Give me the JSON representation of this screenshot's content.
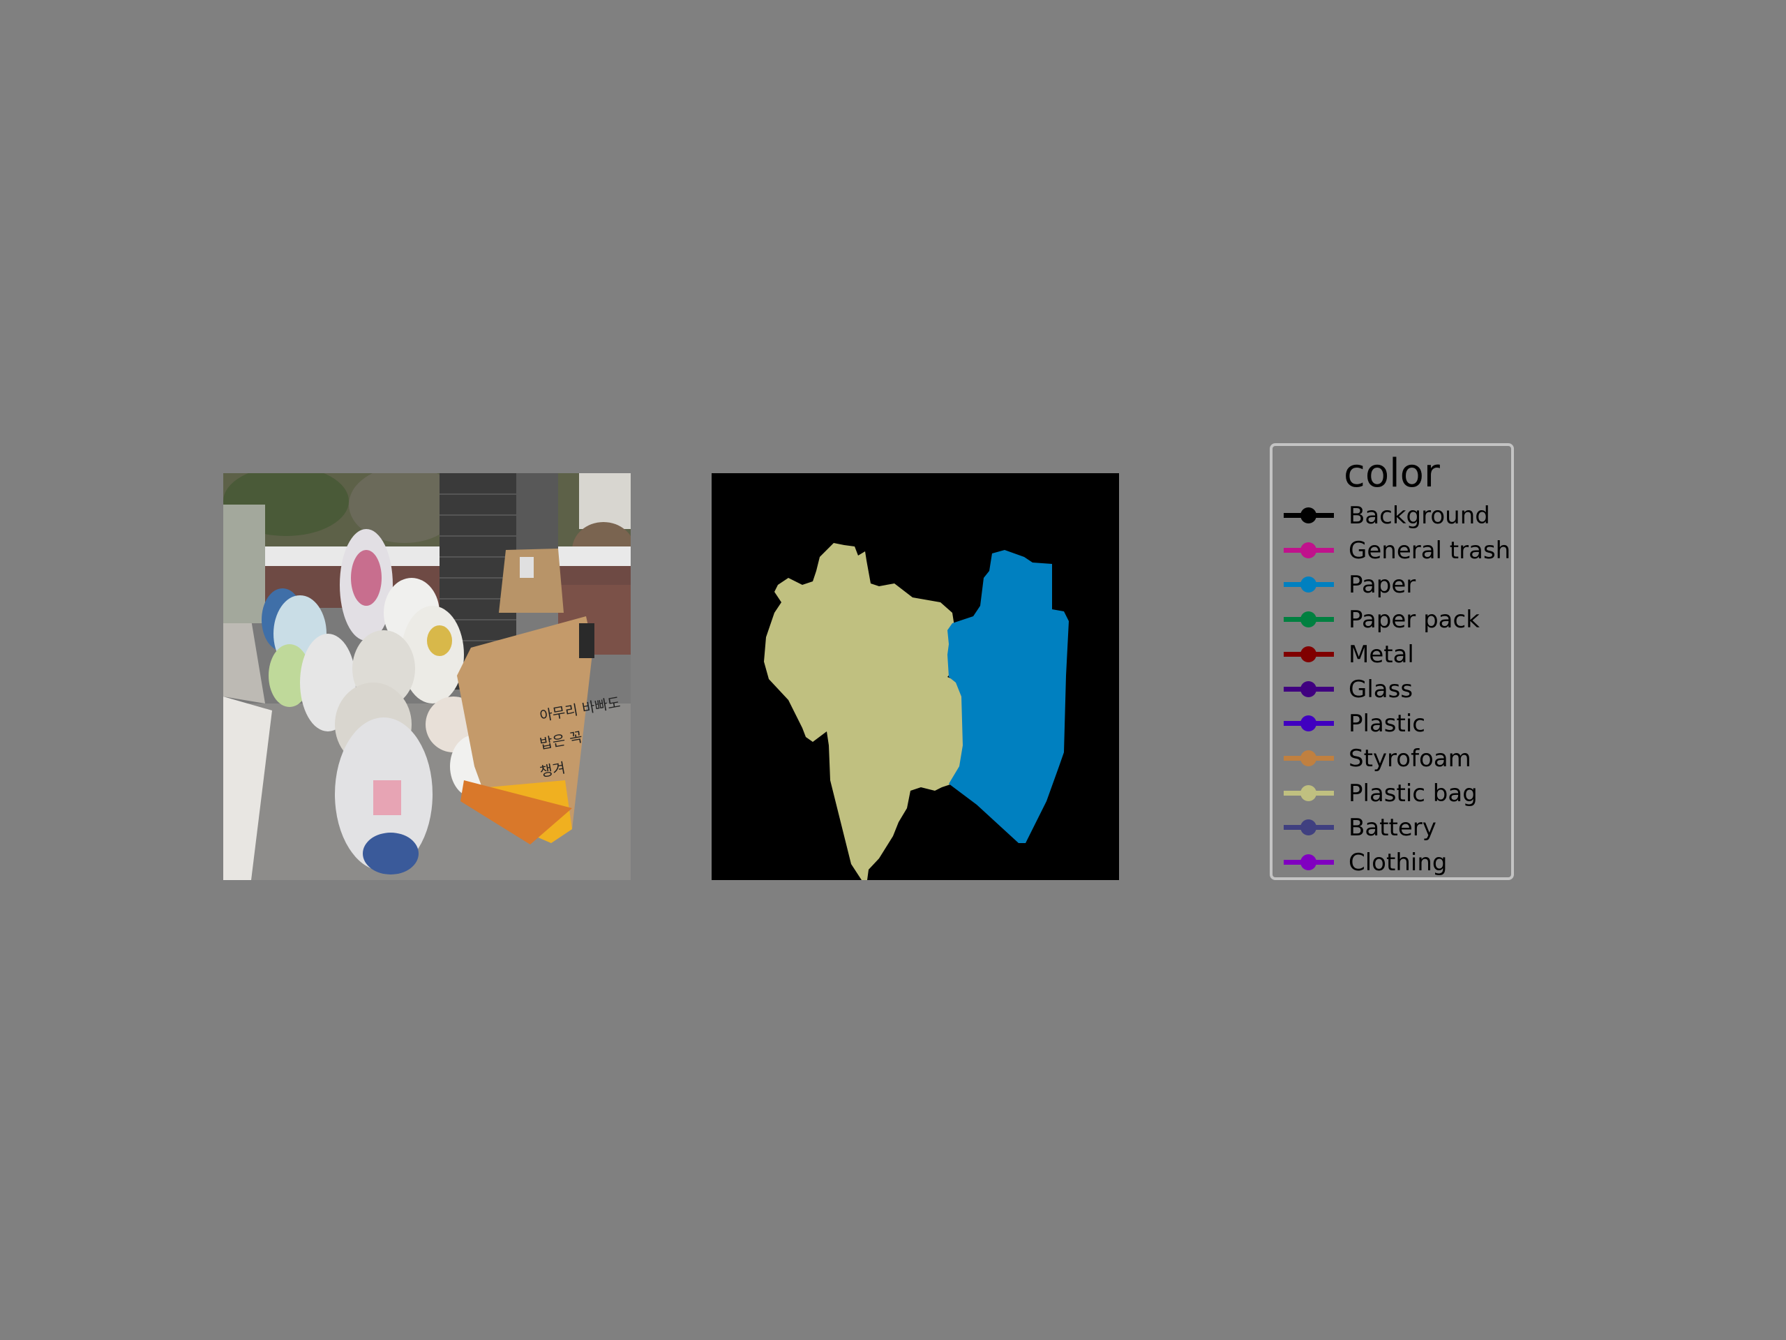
{
  "legend": {
    "title": "color",
    "items": [
      {
        "label": "Background",
        "color": "#000000"
      },
      {
        "label": "General trash",
        "color": "#c0128c"
      },
      {
        "label": "Paper",
        "color": "#0080c0"
      },
      {
        "label": "Paper pack",
        "color": "#008040"
      },
      {
        "label": "Metal",
        "color": "#800000"
      },
      {
        "label": "Glass",
        "color": "#400080"
      },
      {
        "label": "Plastic",
        "color": "#4000c0"
      },
      {
        "label": "Styrofoam",
        "color": "#c08040"
      },
      {
        "label": "Plastic bag",
        "color": "#c0c080"
      },
      {
        "label": "Battery",
        "color": "#404080"
      },
      {
        "label": "Clothing",
        "color": "#8000c0"
      }
    ]
  },
  "photo": {
    "bag_text_lines": [
      "아무리 바빠도",
      "밥은 꼭",
      "챙겨"
    ]
  },
  "mask": {
    "regions": [
      {
        "class": "Plastic bag",
        "color": "#c0c080"
      },
      {
        "class": "Paper",
        "color": "#0080c0"
      }
    ]
  }
}
